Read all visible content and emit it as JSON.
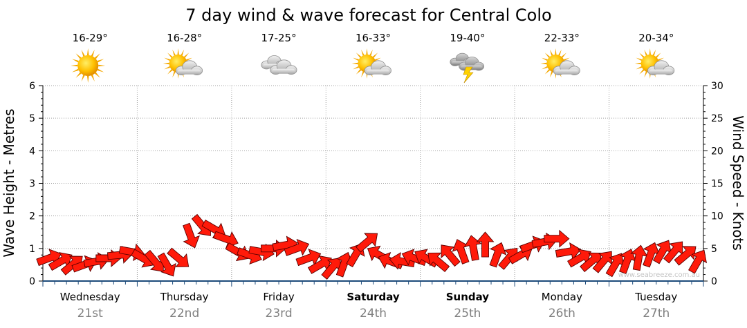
{
  "chart_data": {
    "type": "line",
    "title": "7 day wind & wave forecast for Central Colo",
    "ylabel_left": "Wave Height - Metres",
    "ylabel_right": "Wind Speed - Knots",
    "ylim_left": [
      0,
      6
    ],
    "ylim_right": [
      0,
      30
    ],
    "yticks_left": [
      "0",
      "1",
      "2",
      "3",
      "4",
      "5",
      "6"
    ],
    "yticks_right": [
      "0",
      "5",
      "10",
      "15",
      "20",
      "25",
      "30"
    ],
    "grid": true,
    "watermark": "www.seabreeze.com.au",
    "days": [
      {
        "day": "Wednesday",
        "date": "21st",
        "temp": "16-29°",
        "weather_icon": "sun-icon",
        "bold": false
      },
      {
        "day": "Thursday",
        "date": "22nd",
        "temp": "16-28°",
        "weather_icon": "partly-cloudy-icon",
        "bold": false
      },
      {
        "day": "Friday",
        "date": "23rd",
        "temp": "17-25°",
        "weather_icon": "cloudy-icon",
        "bold": false
      },
      {
        "day": "Saturday",
        "date": "24th",
        "temp": "16-33°",
        "weather_icon": "partly-cloudy-icon",
        "bold": true
      },
      {
        "day": "Sunday",
        "date": "25th",
        "temp": "19-40°",
        "weather_icon": "storm-icon",
        "bold": true
      },
      {
        "day": "Monday",
        "date": "26th",
        "temp": "22-33°",
        "weather_icon": "partly-cloudy-icon",
        "bold": false
      },
      {
        "day": "Tuesday",
        "date": "27th",
        "temp": "20-34°",
        "weather_icon": "partly-cloudy-icon",
        "bold": false
      }
    ],
    "series": [
      {
        "name": "Wind speed and direction",
        "axis": "right",
        "x_hours": [
          0,
          3,
          6,
          9,
          12,
          15,
          18,
          21,
          24,
          27,
          30,
          33,
          36,
          39,
          42,
          45,
          48,
          51,
          54,
          57,
          60,
          63,
          66,
          69,
          72,
          75,
          78,
          81,
          84,
          87,
          90,
          93,
          96,
          99,
          102,
          105,
          108,
          111,
          114,
          117,
          120,
          123,
          126,
          129,
          132,
          135,
          138,
          141,
          144,
          147,
          150,
          153,
          156,
          159,
          162,
          165
        ],
        "knots": [
          3.5,
          3.0,
          2.5,
          2.5,
          3.0,
          3.5,
          4.0,
          4.5,
          3.5,
          3.0,
          2.5,
          3.5,
          7.0,
          8.5,
          8.0,
          6.5,
          4.5,
          4.0,
          4.5,
          5.0,
          5.5,
          5.0,
          3.5,
          2.5,
          2.0,
          2.5,
          4.0,
          6.0,
          4.0,
          3.0,
          3.0,
          3.5,
          3.5,
          3.0,
          4.0,
          4.5,
          5.0,
          5.5,
          4.0,
          3.5,
          4.0,
          5.5,
          6.0,
          6.5,
          4.5,
          3.5,
          3.0,
          3.0,
          2.5,
          3.0,
          3.5,
          4.0,
          4.5,
          4.5,
          4.0,
          3.0
        ],
        "direction_deg": [
          250,
          240,
          230,
          250,
          260,
          270,
          265,
          280,
          300,
          320,
          330,
          310,
          340,
          320,
          300,
          290,
          300,
          290,
          280,
          270,
          260,
          250,
          250,
          240,
          220,
          200,
          210,
          230,
          120,
          110,
          100,
          110,
          120,
          130,
          140,
          160,
          170,
          180,
          200,
          220,
          240,
          250,
          260,
          270,
          260,
          240,
          230,
          220,
          210,
          200,
          190,
          200,
          210,
          220,
          230,
          210
        ]
      }
    ]
  }
}
